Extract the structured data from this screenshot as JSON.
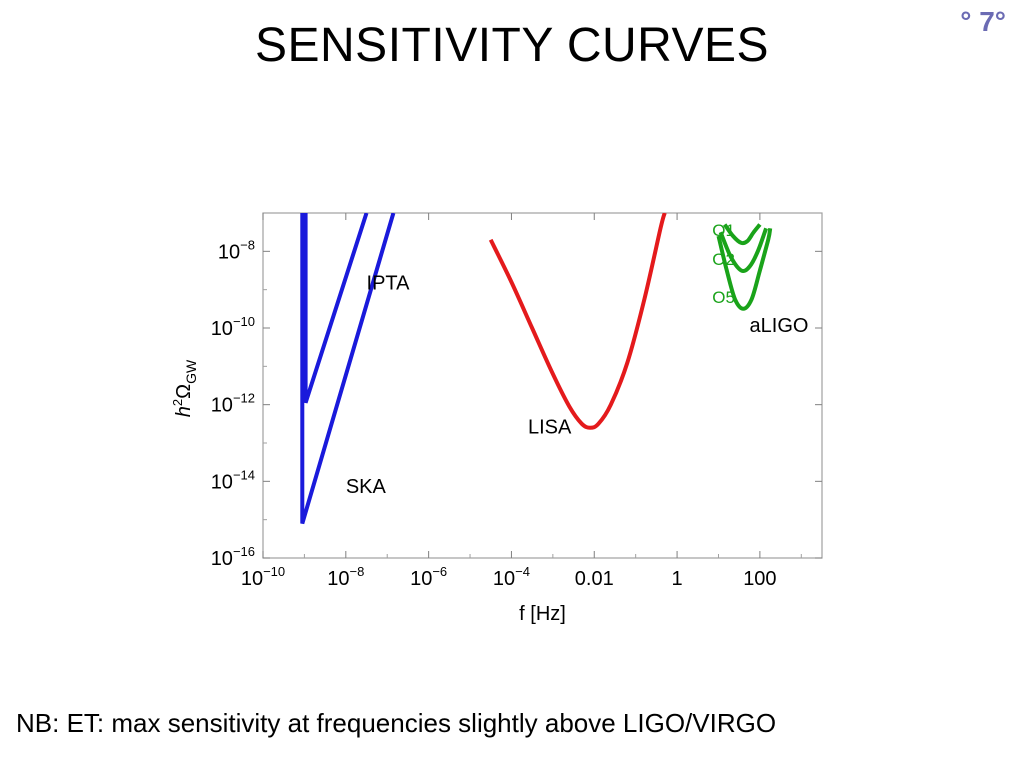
{
  "slide": {
    "title": "SENSITIVITY CURVES",
    "number": "° 7°",
    "footnote": "NB: ET: max sensitivity at frequencies slightly above LIGO/VIRGO"
  },
  "chart_data": {
    "type": "line",
    "xlabel": "f [Hz]",
    "ylabel": "h²Ω_GW",
    "x_scale": "log",
    "y_scale": "log",
    "xlim_log10": [
      -10,
      3.5
    ],
    "ylim_log10": [
      -16,
      -7
    ],
    "x_ticks": [
      {
        "log10": -10,
        "base": "10",
        "exp": "−10"
      },
      {
        "log10": -8,
        "base": "10",
        "exp": "−8"
      },
      {
        "log10": -6,
        "base": "10",
        "exp": "−6"
      },
      {
        "log10": -4,
        "base": "10",
        "exp": "−4"
      },
      {
        "log10": -2,
        "base": "0.01",
        "exp": ""
      },
      {
        "log10": 0,
        "base": "1",
        "exp": ""
      },
      {
        "log10": 2,
        "base": "100",
        "exp": ""
      }
    ],
    "y_ticks": [
      {
        "log10": -8,
        "base": "10",
        "exp": "−8"
      },
      {
        "log10": -10,
        "base": "10",
        "exp": "−10"
      },
      {
        "log10": -12,
        "base": "10",
        "exp": "−12"
      },
      {
        "log10": -14,
        "base": "10",
        "exp": "−14"
      },
      {
        "log10": -16,
        "base": "10",
        "exp": "−16"
      }
    ],
    "grid": false,
    "series": [
      {
        "name": "IPTA",
        "color": "#1a1adb",
        "points_log10": [
          [
            -8.97,
            -7
          ],
          [
            -8.97,
            -11.95
          ],
          [
            -7.5,
            -7
          ]
        ]
      },
      {
        "name": "SKA",
        "color": "#1a1adb",
        "points_log10": [
          [
            -9.05,
            -7
          ],
          [
            -9.05,
            -15.1
          ],
          [
            -6.85,
            -7
          ]
        ]
      },
      {
        "name": "LISA",
        "color": "#e41a1c",
        "points_log10": [
          [
            -4.5,
            -7.7
          ],
          [
            -4.0,
            -8.8
          ],
          [
            -3.5,
            -10.0
          ],
          [
            -3.0,
            -11.2
          ],
          [
            -2.6,
            -12.05
          ],
          [
            -2.3,
            -12.5
          ],
          [
            -2.1,
            -12.6
          ],
          [
            -1.9,
            -12.5
          ],
          [
            -1.6,
            -12.0
          ],
          [
            -1.2,
            -10.9
          ],
          [
            -0.8,
            -9.3
          ],
          [
            -0.4,
            -7.4
          ],
          [
            -0.3,
            -7.0
          ]
        ]
      },
      {
        "name": "O1",
        "color": "#1aa31a",
        "points_log10": [
          [
            1.15,
            -7.3
          ],
          [
            1.35,
            -7.6
          ],
          [
            1.55,
            -7.78
          ],
          [
            1.7,
            -7.73
          ],
          [
            1.85,
            -7.5
          ],
          [
            2.0,
            -7.3
          ]
        ]
      },
      {
        "name": "O2",
        "color": "#1aa31a",
        "points_log10": [
          [
            1.05,
            -7.5
          ],
          [
            1.3,
            -8.15
          ],
          [
            1.55,
            -8.5
          ],
          [
            1.75,
            -8.4
          ],
          [
            1.95,
            -8.0
          ],
          [
            2.15,
            -7.4
          ]
        ]
      },
      {
        "name": "O5",
        "color": "#1aa31a",
        "points_log10": [
          [
            1.0,
            -7.6
          ],
          [
            1.2,
            -8.5
          ],
          [
            1.4,
            -9.25
          ],
          [
            1.6,
            -9.5
          ],
          [
            1.8,
            -9.25
          ],
          [
            2.0,
            -8.5
          ],
          [
            2.2,
            -7.7
          ],
          [
            2.25,
            -7.4
          ]
        ]
      }
    ],
    "annotations": [
      {
        "text": "IPTA",
        "color": "#000000",
        "at_log10": [
          -7.5,
          -9.0
        ]
      },
      {
        "text": "SKA",
        "color": "#000000",
        "at_log10": [
          -8.0,
          -14.3
        ]
      },
      {
        "text": "LISA",
        "color": "#000000",
        "at_log10": [
          -3.6,
          -12.75
        ]
      },
      {
        "text": "O1",
        "color": "#1aa31a",
        "at_log10": [
          0.85,
          -7.6
        ]
      },
      {
        "text": "O2",
        "color": "#1aa31a",
        "at_log10": [
          0.85,
          -8.35
        ]
      },
      {
        "text": "O5",
        "color": "#1aa31a",
        "at_log10": [
          0.85,
          -9.35
        ]
      },
      {
        "text": "aLIGO",
        "color": "#000000",
        "at_log10": [
          1.75,
          -10.1
        ]
      }
    ]
  }
}
